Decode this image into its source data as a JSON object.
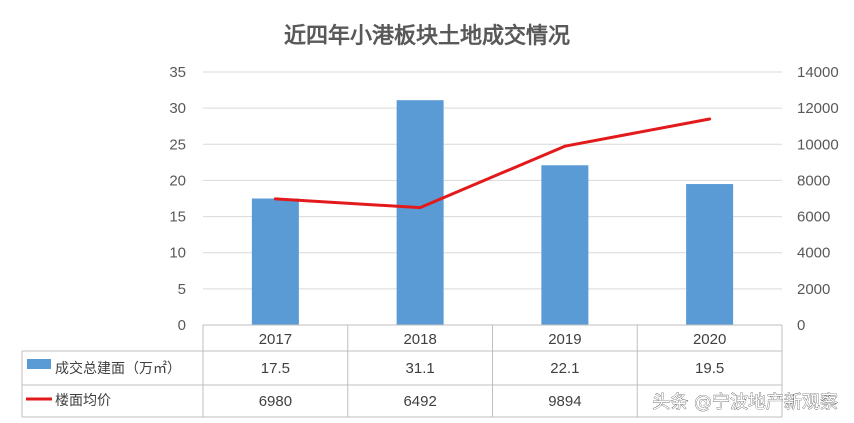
{
  "chart_data": {
    "type": "bar",
    "title": "近四年小港板块土地成交情况",
    "categories": [
      "2017",
      "2018",
      "2019",
      "2020"
    ],
    "series": [
      {
        "name": "成交总建面（万㎡）",
        "type": "bar",
        "axis": "left",
        "values": [
          17.5,
          31.1,
          22.1,
          19.5
        ],
        "labels": [
          "17.5",
          "31.1",
          "22.1",
          "19.5"
        ],
        "color": "#5b9bd5"
      },
      {
        "name": "楼面均价",
        "type": "line",
        "axis": "right",
        "values": [
          6980,
          6492,
          9894,
          11400
        ],
        "labels": [
          "6980",
          "6492",
          "9894",
          ""
        ],
        "color": "#e31a1c"
      }
    ],
    "y_left": {
      "ylim": [
        0,
        35
      ],
      "ticks": [
        "35",
        "30",
        "25",
        "20",
        "15",
        "10",
        "5",
        "0"
      ]
    },
    "y_right": {
      "ylim": [
        0,
        14000
      ],
      "ticks": [
        "14000",
        "12000",
        "10000",
        "8000",
        "6000",
        "4000",
        "2000",
        "0"
      ]
    },
    "grid": true,
    "data_table": true
  },
  "watermark": "头条 @宁波地产新观察"
}
